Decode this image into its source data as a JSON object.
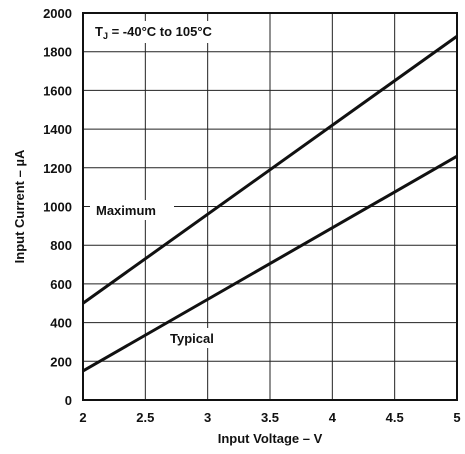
{
  "chart_data": {
    "type": "line",
    "xlabel": "Input Voltage – V",
    "ylabel": "Input Current – µA",
    "xlim": [
      2,
      5
    ],
    "ylim": [
      0,
      2000
    ],
    "xticks": [
      "2",
      "2.5",
      "3",
      "3.5",
      "4",
      "4.5",
      "5"
    ],
    "yticks": [
      "0",
      "200",
      "400",
      "600",
      "800",
      "1000",
      "1200",
      "1400",
      "1600",
      "1800",
      "2000"
    ],
    "grid": true,
    "condition": {
      "symbol": "T",
      "subscript": "J",
      "text": " = -40°C to 105°C"
    },
    "series": [
      {
        "name": "Maximum",
        "x": [
          2,
          5
        ],
        "y": [
          500,
          1880
        ]
      },
      {
        "name": "Typical",
        "x": [
          2,
          5
        ],
        "y": [
          150,
          1260
        ]
      }
    ]
  }
}
